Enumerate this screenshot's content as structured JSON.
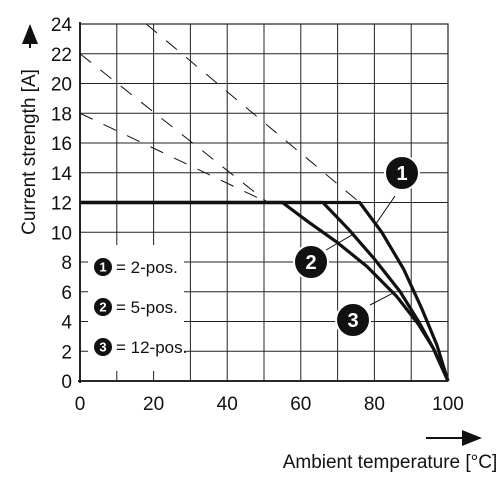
{
  "chart_data": {
    "type": "line",
    "xlabel": "Ambient temperature [°C]",
    "ylabel": "Current strength [A]",
    "xlim": [
      0,
      100
    ],
    "ylim": [
      0,
      24
    ],
    "x_ticks": [
      "0",
      "20",
      "40",
      "60",
      "80",
      "100"
    ],
    "y_ticks": [
      "0",
      "2",
      "4",
      "6",
      "8",
      "10",
      "12",
      "14",
      "16",
      "18",
      "20",
      "22",
      "24"
    ],
    "grid": true,
    "legend_position": "left",
    "legend": [
      {
        "marker": "1",
        "label": "= 2-pos."
      },
      {
        "marker": "2",
        "label": "= 5-pos."
      },
      {
        "marker": "3",
        "label": "= 12-pos."
      }
    ],
    "series": [
      {
        "marker": "1",
        "x": [
          0,
          76,
          82,
          88,
          93,
          97,
          100
        ],
        "y": [
          12,
          12,
          10,
          7.5,
          4.8,
          2.4,
          0
        ]
      },
      {
        "marker": "2",
        "x": [
          0,
          66,
          73,
          80,
          87,
          92,
          96,
          100
        ],
        "y": [
          12,
          12,
          10.2,
          8.2,
          6,
          4,
          2.2,
          0
        ]
      },
      {
        "marker": "3",
        "x": [
          0,
          55,
          62,
          70,
          78,
          86,
          92,
          96,
          100
        ],
        "y": [
          12,
          12,
          10.7,
          9.3,
          7.7,
          5.7,
          3.8,
          2.2,
          0
        ]
      }
    ],
    "reference_dashed": [
      {
        "x": [
          18,
          76
        ],
        "y": [
          24,
          12
        ]
      },
      {
        "x": [
          0,
          51
        ],
        "y": [
          22,
          12
        ]
      },
      {
        "x": [
          0,
          51
        ],
        "y": [
          18,
          12
        ]
      }
    ]
  }
}
